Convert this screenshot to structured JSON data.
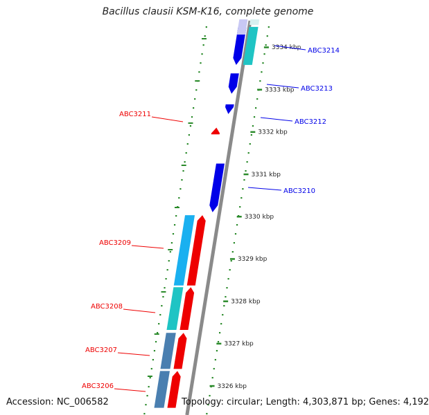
{
  "map": {
    "title": "Bacillus clausii KSM-K16, complete genome",
    "accession": "Accession: NC_006582",
    "topology": "Topology: circular; Length: 4,303,871 bp; Genes: 4,192",
    "colors": {
      "backbone": "#8a8a8a",
      "forward_gene": "#0000e8",
      "reverse_gene": "#ee0000",
      "cds_light_blue": "#1ab0f0",
      "cds_teal": "#1fc4c4",
      "cds_steel": "#4a7fb0",
      "ticks": "#2a8a2a"
    }
  },
  "chart_data": {
    "type": "genome-map",
    "axis_unit": "kbp",
    "ticks": [
      {
        "kbp": 3334,
        "label": "3334 kbp"
      },
      {
        "kbp": 3333,
        "label": "3333 kbp"
      },
      {
        "kbp": 3332,
        "label": "3332 kbp"
      },
      {
        "kbp": 3331,
        "label": "3331 kbp"
      },
      {
        "kbp": 3330,
        "label": "3330 kbp"
      },
      {
        "kbp": 3329,
        "label": "3329 kbp"
      },
      {
        "kbp": 3328,
        "label": "3328 kbp"
      },
      {
        "kbp": 3327,
        "label": "3327 kbp"
      },
      {
        "kbp": 3326,
        "label": "3326 kbp"
      }
    ],
    "genes": [
      {
        "label": "ABC3214",
        "strand": "forward",
        "start_kbp": 3333.58,
        "end_kbp": 3334.48
      },
      {
        "label": "ABC3213",
        "strand": "forward",
        "start_kbp": 3332.9,
        "end_kbp": 3333.38
      },
      {
        "label": "ABC3212",
        "strand": "forward",
        "start_kbp": 3332.42,
        "end_kbp": 3332.65
      },
      {
        "label": "ABC3211",
        "strand": "reverse",
        "start_kbp": 3331.94,
        "end_kbp": 3332.1
      },
      {
        "label": "ABC3210",
        "strand": "forward",
        "start_kbp": 3330.1,
        "end_kbp": 3331.25
      },
      {
        "label": "ABC3209",
        "strand": "reverse",
        "start_kbp": 3328.37,
        "end_kbp": 3330.03
      },
      {
        "label": "ABC3208",
        "strand": "reverse",
        "start_kbp": 3327.32,
        "end_kbp": 3328.33
      },
      {
        "label": "ABC3207",
        "strand": "reverse",
        "start_kbp": 3326.4,
        "end_kbp": 3327.25
      },
      {
        "label": "ABC3206",
        "strand": "reverse",
        "start_kbp": 3325.48,
        "end_kbp": 3326.35
      }
    ],
    "cds_features": [
      {
        "track": "forward-cds",
        "color": "cds_teal",
        "start_kbp": 3333.58,
        "end_kbp": 3334.48
      },
      {
        "track": "reverse-cds",
        "color": "cds_light_blue",
        "start_kbp": 3328.37,
        "end_kbp": 3330.03
      },
      {
        "track": "reverse-cds",
        "color": "cds_teal",
        "start_kbp": 3327.32,
        "end_kbp": 3328.33
      },
      {
        "track": "reverse-cds",
        "color": "cds_steel",
        "start_kbp": 3326.4,
        "end_kbp": 3327.25
      },
      {
        "track": "reverse-cds",
        "color": "cds_steel",
        "start_kbp": 3325.48,
        "end_kbp": 3326.35
      }
    ]
  }
}
